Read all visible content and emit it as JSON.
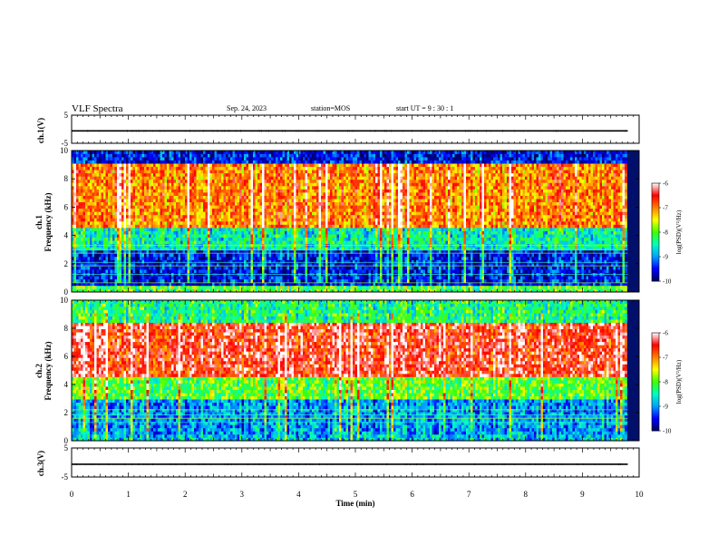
{
  "header": {
    "title": "VLF Spectra",
    "date": "Sep. 24, 2023",
    "station": "station=MOS",
    "start_ut": "start UT =  9 : 30 : 1"
  },
  "xaxis": {
    "label": "Time (min)",
    "range": [
      0,
      10
    ],
    "ticks": [
      "0",
      "1",
      "2",
      "3",
      "4",
      "5",
      "6",
      "7",
      "8",
      "9",
      "10"
    ]
  },
  "panels": {
    "ch1_wave": {
      "ylabel": "ch.1(V)",
      "ticks": [
        "5",
        "-5"
      ]
    },
    "ch1_spec": {
      "ylabel_top": "ch.1",
      "ylabel": "Frequency (kHz)",
      "ticks": [
        "10",
        "8",
        "6",
        "4",
        "2",
        "0"
      ]
    },
    "ch2_spec": {
      "ylabel_top": "ch.2",
      "ylabel": "Frequency (kHz)",
      "ticks": [
        "10",
        "8",
        "6",
        "4",
        "2",
        "0"
      ]
    },
    "ch3_wave": {
      "ylabel": "ch.3(V)",
      "ticks": [
        "5",
        "-5"
      ]
    }
  },
  "colorbar": {
    "label": "log(PSD)(V²/Hz)",
    "ticks": [
      "-6",
      "-7",
      "-8",
      "-9",
      "-10"
    ],
    "colors": [
      "#000060",
      "#0000ff",
      "#00a0ff",
      "#00ffc0",
      "#40ff00",
      "#ffff00",
      "#ff8000",
      "#ff0000",
      "#ffffff"
    ]
  },
  "chart_data": [
    {
      "type": "line",
      "title": "ch.1(V)",
      "x": [
        0,
        9.8
      ],
      "y": [
        -0.6,
        -0.6
      ],
      "xlim": [
        0,
        10
      ],
      "ylim": [
        -5,
        5
      ]
    },
    {
      "type": "heatmap",
      "title": "ch.1 Frequency (kHz)",
      "xlim": [
        0,
        9.8
      ],
      "ylim": [
        0,
        10
      ],
      "zlim": [
        -10,
        -6
      ],
      "bands_khz": [
        {
          "range": [
            9.0,
            10.0
          ],
          "log_psd": -9.5
        },
        {
          "range": [
            4.5,
            9.0
          ],
          "log_psd": -7.0
        },
        {
          "range": [
            3.0,
            4.5
          ],
          "log_psd": -8.5
        },
        {
          "range": [
            0.5,
            3.0
          ],
          "log_psd": -9.5
        },
        {
          "range": [
            0.0,
            0.5
          ],
          "log_psd": -8.0
        }
      ]
    },
    {
      "type": "heatmap",
      "title": "ch.2 Frequency (kHz)",
      "xlim": [
        0,
        9.8
      ],
      "ylim": [
        0,
        10
      ],
      "zlim": [
        -10,
        -6
      ],
      "bands_khz": [
        {
          "range": [
            8.5,
            10.0
          ],
          "log_psd": -8.3
        },
        {
          "range": [
            4.5,
            8.5
          ],
          "log_psd": -6.5
        },
        {
          "range": [
            3.0,
            4.5
          ],
          "log_psd": -8.0
        },
        {
          "range": [
            0.5,
            3.0
          ],
          "log_psd": -9.0
        },
        {
          "range": [
            0.0,
            0.5
          ],
          "log_psd": -8.8
        }
      ]
    },
    {
      "type": "line",
      "title": "ch.3(V)",
      "x": [
        0,
        9.8
      ],
      "y": [
        -0.6,
        -0.6
      ],
      "xlim": [
        0,
        10
      ],
      "ylim": [
        -5,
        5
      ]
    }
  ]
}
